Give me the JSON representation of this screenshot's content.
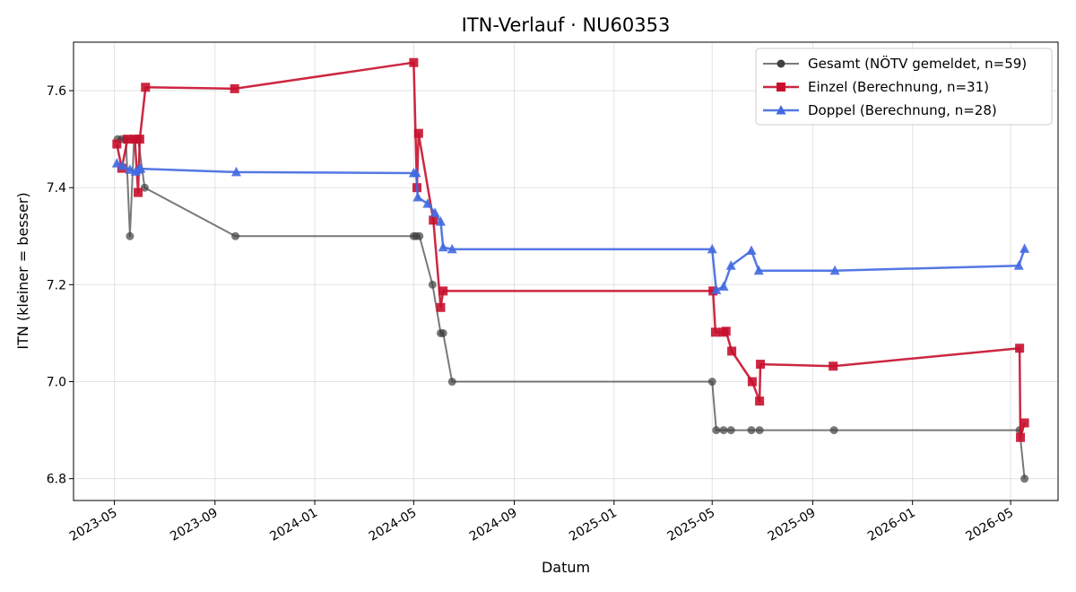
{
  "chart_data": {
    "type": "line",
    "title": "ITN-Verlauf · NU60353",
    "xlabel": "Datum",
    "ylabel": "ITN  (kleiner = besser)",
    "xlim": [
      "2023-03-12",
      "2026-06-28"
    ],
    "ylim": [
      6.755,
      7.7
    ],
    "x_ticks": [
      "2023-05",
      "2023-09",
      "2024-01",
      "2024-05",
      "2024-09",
      "2025-01",
      "2025-05",
      "2025-09",
      "2026-01",
      "2026-05"
    ],
    "y_ticks": [
      6.8,
      7.0,
      7.2,
      7.4,
      7.6
    ],
    "grid": true,
    "legend_position": "top-right",
    "series": [
      {
        "name": "Gesamt (NÖTV gemeldet, n=59)",
        "color": "#404040",
        "marker": "circle",
        "points": [
          [
            "2023-05-05",
            7.5
          ],
          [
            "2023-05-10",
            7.5
          ],
          [
            "2023-05-15",
            7.5
          ],
          [
            "2023-05-20",
            7.3
          ],
          [
            "2023-05-25",
            7.5
          ],
          [
            "2023-05-30",
            7.5
          ],
          [
            "2023-06-07",
            7.4
          ],
          [
            "2023-09-26",
            7.3
          ],
          [
            "2024-05-01",
            7.3
          ],
          [
            "2024-05-04",
            7.3
          ],
          [
            "2024-05-08",
            7.3
          ],
          [
            "2024-05-24",
            7.2
          ],
          [
            "2024-06-03",
            7.1
          ],
          [
            "2024-06-06",
            7.1
          ],
          [
            "2024-06-17",
            7.0
          ],
          [
            "2025-05-01",
            7.0
          ],
          [
            "2025-05-06",
            6.9
          ],
          [
            "2025-05-15",
            6.9
          ],
          [
            "2025-05-24",
            6.9
          ],
          [
            "2025-06-18",
            6.9
          ],
          [
            "2025-06-28",
            6.9
          ],
          [
            "2025-09-27",
            6.9
          ],
          [
            "2026-05-12",
            6.9
          ],
          [
            "2026-05-18",
            6.8
          ]
        ]
      },
      {
        "name": "Einzel (Berechnung, n=31)",
        "color": "#c8102e",
        "marker": "square",
        "points": [
          [
            "2023-05-04",
            7.49
          ],
          [
            "2023-05-10",
            7.44
          ],
          [
            "2023-05-17",
            7.5
          ],
          [
            "2023-05-26",
            7.5
          ],
          [
            "2023-05-30",
            7.39
          ],
          [
            "2023-06-01",
            7.5
          ],
          [
            "2023-06-08",
            7.607
          ],
          [
            "2023-09-25",
            7.604
          ],
          [
            "2024-05-01",
            7.658
          ],
          [
            "2024-05-05",
            7.4
          ],
          [
            "2024-05-07",
            7.512
          ],
          [
            "2024-05-25",
            7.333
          ],
          [
            "2024-06-03",
            7.153
          ],
          [
            "2024-06-06",
            7.187
          ],
          [
            "2025-05-02",
            7.187
          ],
          [
            "2025-05-05",
            7.102
          ],
          [
            "2025-05-15",
            7.102
          ],
          [
            "2025-05-18",
            7.104
          ],
          [
            "2025-05-25",
            7.063
          ],
          [
            "2025-06-19",
            7.0
          ],
          [
            "2025-06-28",
            6.96
          ],
          [
            "2025-06-29",
            7.036
          ],
          [
            "2025-09-26",
            7.032
          ],
          [
            "2026-05-12",
            7.069
          ],
          [
            "2026-05-13",
            6.885
          ],
          [
            "2026-05-18",
            6.915
          ]
        ]
      },
      {
        "name": "Doppel (Berechnung, n=28)",
        "color": "#4169e1",
        "marker": "triangle",
        "points": [
          [
            "2023-05-04",
            7.45
          ],
          [
            "2023-05-11",
            7.445
          ],
          [
            "2023-05-20",
            7.437
          ],
          [
            "2023-05-27",
            7.433
          ],
          [
            "2023-05-30",
            7.437
          ],
          [
            "2023-06-02",
            7.439
          ],
          [
            "2023-09-27",
            7.432
          ],
          [
            "2024-05-01",
            7.43
          ],
          [
            "2024-05-04",
            7.43
          ],
          [
            "2024-05-06",
            7.38
          ],
          [
            "2024-05-18",
            7.367
          ],
          [
            "2024-05-27",
            7.348
          ],
          [
            "2024-06-03",
            7.33
          ],
          [
            "2024-06-06",
            7.277
          ],
          [
            "2024-06-17",
            7.273
          ],
          [
            "2025-05-01",
            7.273
          ],
          [
            "2025-05-06",
            7.189
          ],
          [
            "2025-05-15",
            7.196
          ],
          [
            "2025-05-24",
            7.239
          ],
          [
            "2025-06-18",
            7.27
          ],
          [
            "2025-06-27",
            7.229
          ],
          [
            "2025-09-28",
            7.229
          ],
          [
            "2026-05-11",
            7.239
          ],
          [
            "2026-05-18",
            7.274
          ]
        ]
      }
    ]
  }
}
